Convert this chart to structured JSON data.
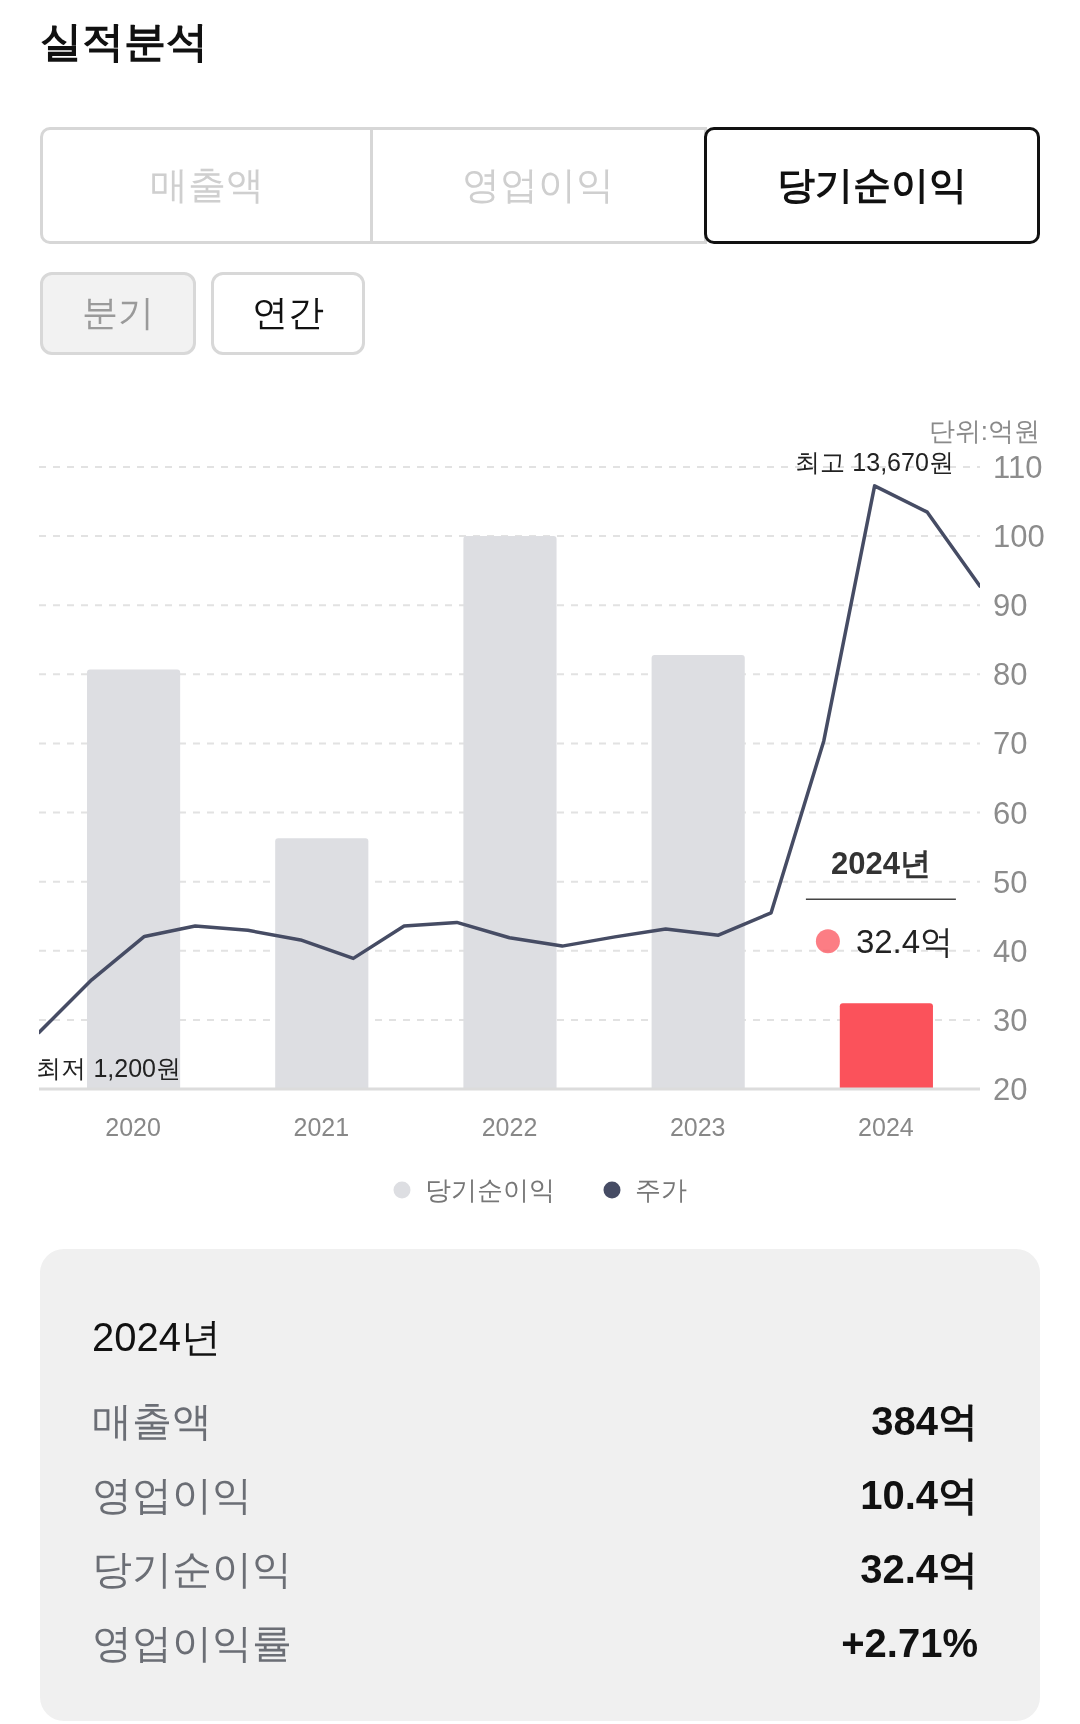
{
  "chart_data": [
    {
      "type": "other",
      "title": "실적분석",
      "annotations": [
        "매출액",
        "영업이익",
        "당기순이익",
        "분기",
        "연간"
      ]
    },
    {
      "type": "bar",
      "ylabel": "단위:억원",
      "x": [
        2020,
        2021,
        2022,
        2023,
        2024
      ],
      "xlim": [
        2019.5,
        2024.5
      ],
      "xticks": [
        2020,
        2021,
        2022,
        2023,
        2024
      ],
      "ylim": [
        20,
        110
      ],
      "yticks": [
        20,
        30,
        40,
        50,
        60,
        70,
        80,
        90,
        100,
        110
      ],
      "y2lim": [
        -90,
        14100
      ],
      "series": [
        {
          "name": "당기순이익",
          "type": "bar",
          "color": "#dddee2",
          "colors": [
            "#dddee2",
            "#dddee2",
            "#dddee2",
            "#dddee2",
            "#fb525b"
          ],
          "values": [
            80.7,
            56.3,
            100,
            82.8,
            32.4
          ],
          "value_labels": [
            null,
            null,
            null,
            null,
            "32.4억"
          ]
        },
        {
          "name": "주가",
          "type": "line",
          "axis": "y2",
          "color": "#464c64",
          "x": [
            2019.5,
            2019.78,
            2020.06,
            2020.33,
            2020.61,
            2020.89,
            2021.17,
            2021.44,
            2021.72,
            2022,
            2022.28,
            2022.56,
            2022.83,
            2023.11,
            2023.39,
            2023.67,
            2023.94,
            2024.22,
            2024.5
          ],
          "values": [
            1200,
            2400,
            3390,
            3630,
            3530,
            3310,
            2890,
            3630,
            3710,
            3360,
            3170,
            3380,
            3560,
            3420,
            3930,
            7850,
            13670,
            13070,
            11380
          ],
          "value_labels": [
            "최저 1,200원",
            null,
            null,
            null,
            null,
            null,
            null,
            null,
            null,
            null,
            null,
            null,
            null,
            null,
            null,
            null,
            "최고 13,670원",
            null,
            null
          ]
        }
      ],
      "annotations": [
        "2024년"
      ],
      "grid": "y",
      "legend": "bottom"
    },
    {
      "type": "other",
      "title": "2024년",
      "annotations": [
        "매출액",
        "384억",
        "영업이익",
        "10.4억",
        "당기순이익",
        "32.4억",
        "영업이익률",
        "+2.71%"
      ]
    }
  ]
}
